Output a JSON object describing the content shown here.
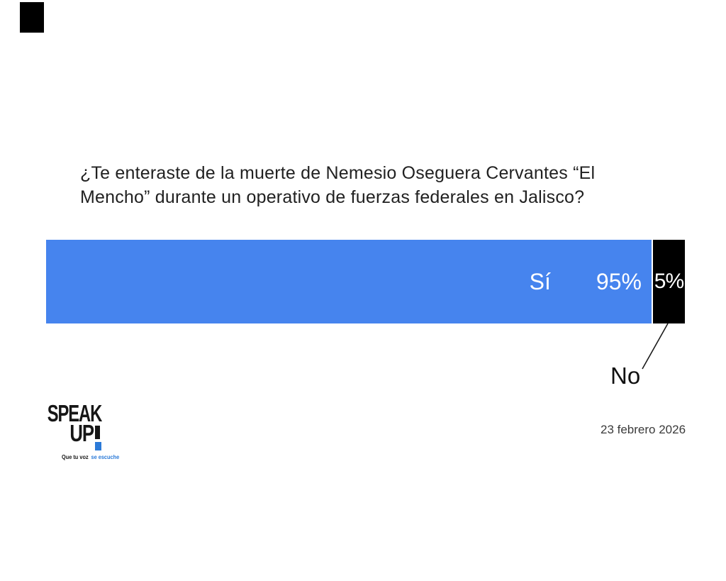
{
  "page": {
    "background": "#ffffff"
  },
  "corner_mark": {
    "color": "#000000"
  },
  "question": {
    "full_text": "¿Te enteraste de la muerte de Nemesio Oseguera Cervantes “El Mencho” durante un operativo de fuerzas federales en Jalisco?",
    "lines": [
      "¿Te enteraste de la muerte de Nemesio Oseguera Cervantes “El",
      "Mencho” durante un operativo de fuerzas federales en Jalisco?"
    ]
  },
  "chart_data": {
    "type": "bar",
    "orientation": "horizontal",
    "stacked": true,
    "title": "¿Te enteraste de la muerte de Nemesio Oseguera Cervantes “El Mencho” durante un operativo de fuerzas federales en Jalisco?",
    "categories": [
      "Sí",
      "No"
    ],
    "values": [
      95,
      5
    ],
    "value_suffix": "%",
    "xlim": [
      0,
      100
    ],
    "legend_position": "none",
    "grid": false,
    "series": [
      {
        "name": "Sí",
        "value": 95,
        "label": "95%",
        "color": "#4684ee",
        "label_color": "#ffffff"
      },
      {
        "name": "No",
        "value": 5,
        "label": "5%",
        "color": "#000000",
        "label_color": "#ffffff"
      }
    ],
    "callout": {
      "text": "No",
      "points_to": "black 5% segment"
    }
  },
  "footer": {
    "date": "23 febrero 2026",
    "logo": {
      "word1": "SPEAK",
      "word2": "UP",
      "exclamation": "!",
      "tagline_black": "Que tu voz",
      "tagline_blue": "se escuche",
      "black": "#161616",
      "blue": "#2b7ad8"
    }
  }
}
